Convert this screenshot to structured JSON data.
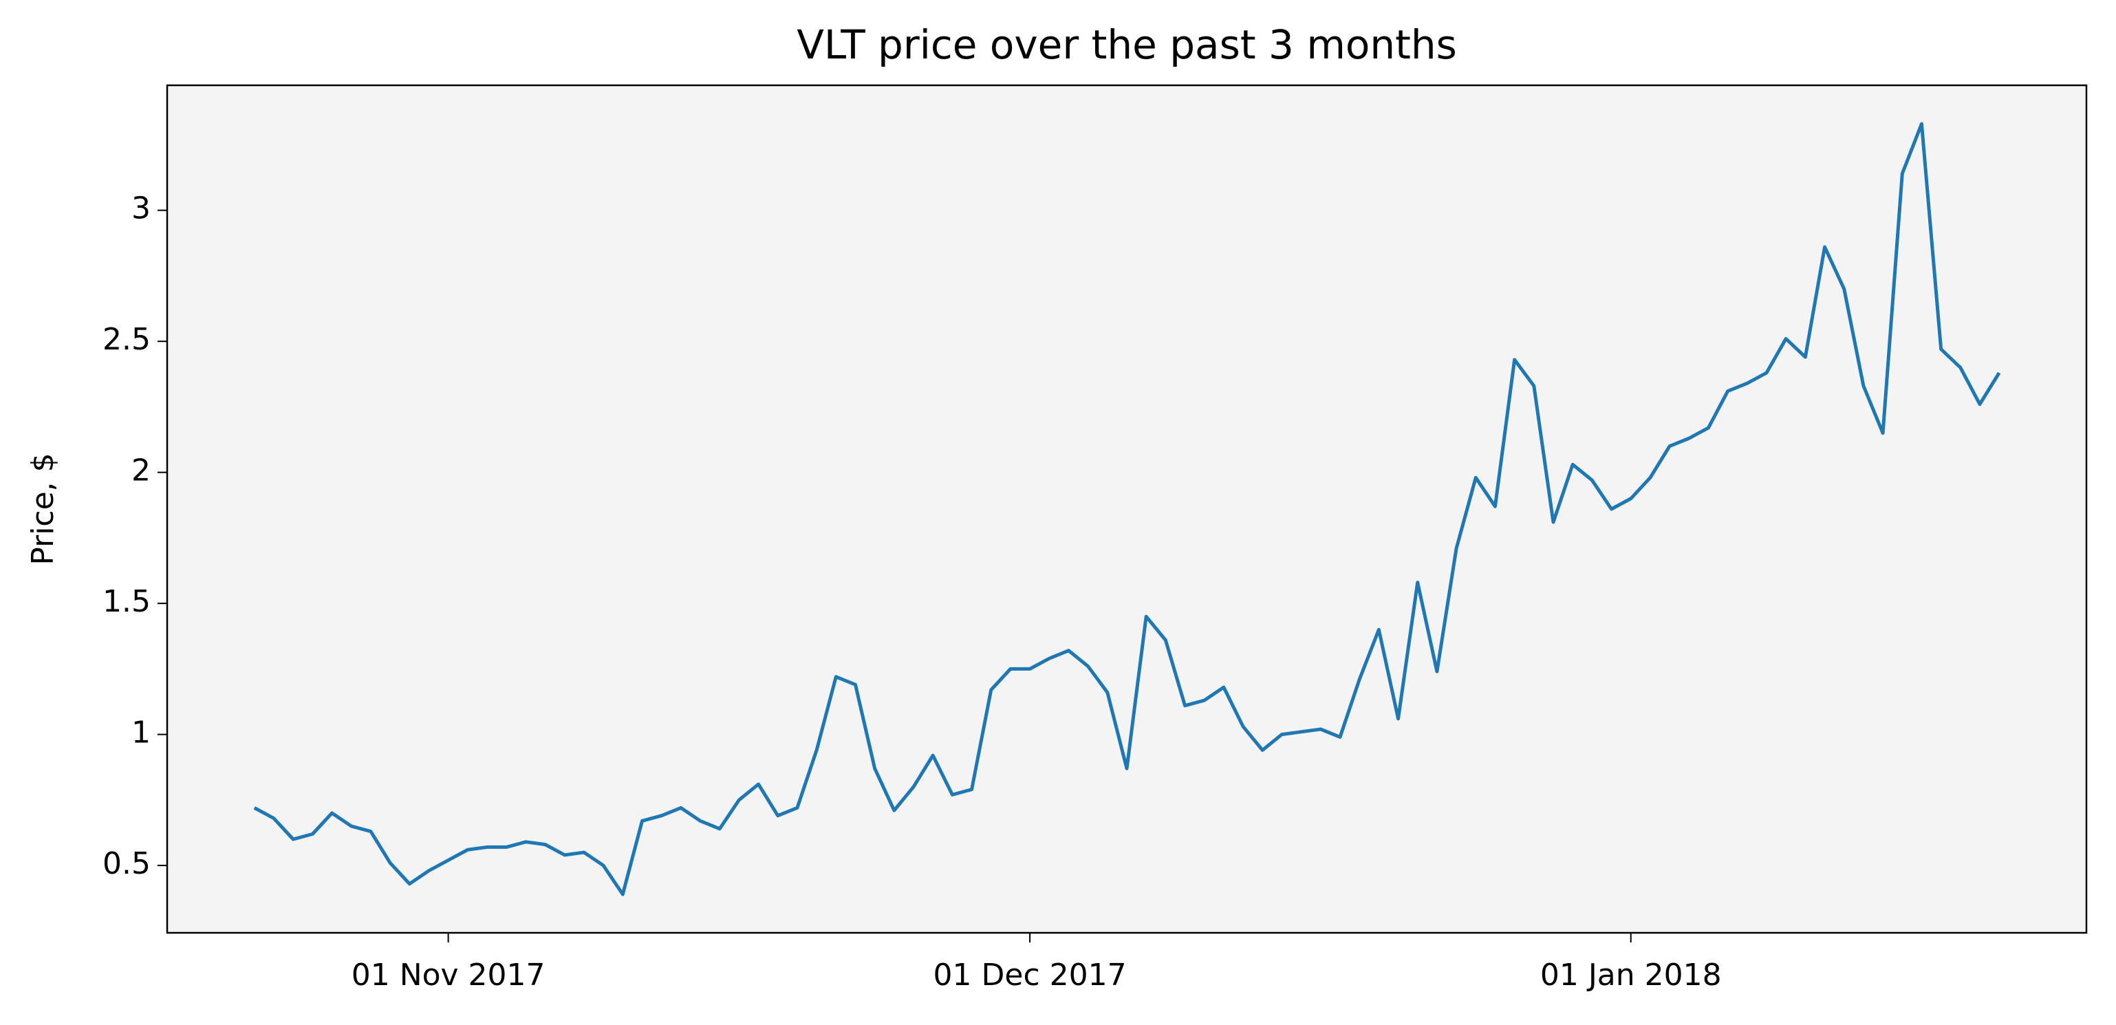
{
  "chart_data": {
    "type": "line",
    "title": "VLT price over the past 3 months",
    "y_label": "Price, $",
    "color": "#1f77b4",
    "background": "#f4f4f4",
    "grid": false,
    "x": [
      "2017-10-22",
      "2017-10-23",
      "2017-10-24",
      "2017-10-25",
      "2017-10-26",
      "2017-10-27",
      "2017-10-28",
      "2017-10-29",
      "2017-10-30",
      "2017-10-31",
      "2017-11-01",
      "2017-11-02",
      "2017-11-03",
      "2017-11-04",
      "2017-11-05",
      "2017-11-06",
      "2017-11-07",
      "2017-11-08",
      "2017-11-09",
      "2017-11-10",
      "2017-11-11",
      "2017-11-12",
      "2017-11-13",
      "2017-11-14",
      "2017-11-15",
      "2017-11-16",
      "2017-11-17",
      "2017-11-18",
      "2017-11-19",
      "2017-11-20",
      "2017-11-21",
      "2017-11-22",
      "2017-11-23",
      "2017-11-24",
      "2017-11-25",
      "2017-11-26",
      "2017-11-27",
      "2017-11-28",
      "2017-11-29",
      "2017-11-30",
      "2017-12-01",
      "2017-12-02",
      "2017-12-03",
      "2017-12-04",
      "2017-12-05",
      "2017-12-06",
      "2017-12-07",
      "2017-12-08",
      "2017-12-09",
      "2017-12-10",
      "2017-12-11",
      "2017-12-12",
      "2017-12-13",
      "2017-12-14",
      "2017-12-15",
      "2017-12-16",
      "2017-12-17",
      "2017-12-18",
      "2017-12-19",
      "2017-12-20",
      "2017-12-21",
      "2017-12-22",
      "2017-12-23",
      "2017-12-24",
      "2017-12-25",
      "2017-12-26",
      "2017-12-27",
      "2017-12-28",
      "2017-12-29",
      "2017-12-30",
      "2017-12-31",
      "2018-01-01",
      "2018-01-02",
      "2018-01-03",
      "2018-01-04",
      "2018-01-05",
      "2018-01-06",
      "2018-01-07",
      "2018-01-08",
      "2018-01-09",
      "2018-01-10",
      "2018-01-11",
      "2018-01-12",
      "2018-01-13",
      "2018-01-14",
      "2018-01-15",
      "2018-01-16",
      "2018-01-17",
      "2018-01-18",
      "2018-01-19",
      "2018-01-20"
    ],
    "values": [
      0.72,
      0.68,
      0.6,
      0.62,
      0.7,
      0.65,
      0.63,
      0.51,
      0.43,
      0.48,
      0.52,
      0.56,
      0.57,
      0.57,
      0.59,
      0.58,
      0.54,
      0.55,
      0.5,
      0.39,
      0.67,
      0.69,
      0.72,
      0.67,
      0.64,
      0.75,
      0.81,
      0.69,
      0.72,
      0.94,
      1.22,
      1.19,
      0.87,
      0.71,
      0.8,
      0.92,
      0.77,
      0.79,
      1.17,
      1.25,
      1.25,
      1.29,
      1.32,
      1.26,
      1.16,
      0.87,
      1.45,
      1.36,
      1.11,
      1.13,
      1.18,
      1.03,
      0.94,
      1.0,
      1.01,
      1.02,
      0.99,
      1.21,
      1.4,
      1.06,
      1.58,
      1.24,
      1.71,
      1.98,
      1.87,
      2.43,
      2.33,
      1.81,
      2.03,
      1.97,
      1.86,
      1.9,
      1.98,
      2.1,
      2.13,
      2.17,
      2.31,
      2.34,
      2.38,
      2.51,
      2.44,
      2.86,
      2.7,
      2.33,
      2.15,
      3.14,
      3.33,
      2.47,
      2.4,
      2.26,
      2.38
    ],
    "xlim": [
      "2017-10-17T12:00:00Z",
      "2018-01-24T12:00:00Z"
    ],
    "xticks": [
      {
        "value": "2017-11-01",
        "label": "01 Nov 2017"
      },
      {
        "value": "2017-12-01",
        "label": "01 Dec 2017"
      },
      {
        "value": "2018-01-01",
        "label": "01 Jan 2018"
      }
    ],
    "ylim": [
      0.243,
      3.477
    ],
    "yticks": [
      0.5,
      1.0,
      1.5,
      2.0,
      2.5,
      3.0
    ]
  }
}
